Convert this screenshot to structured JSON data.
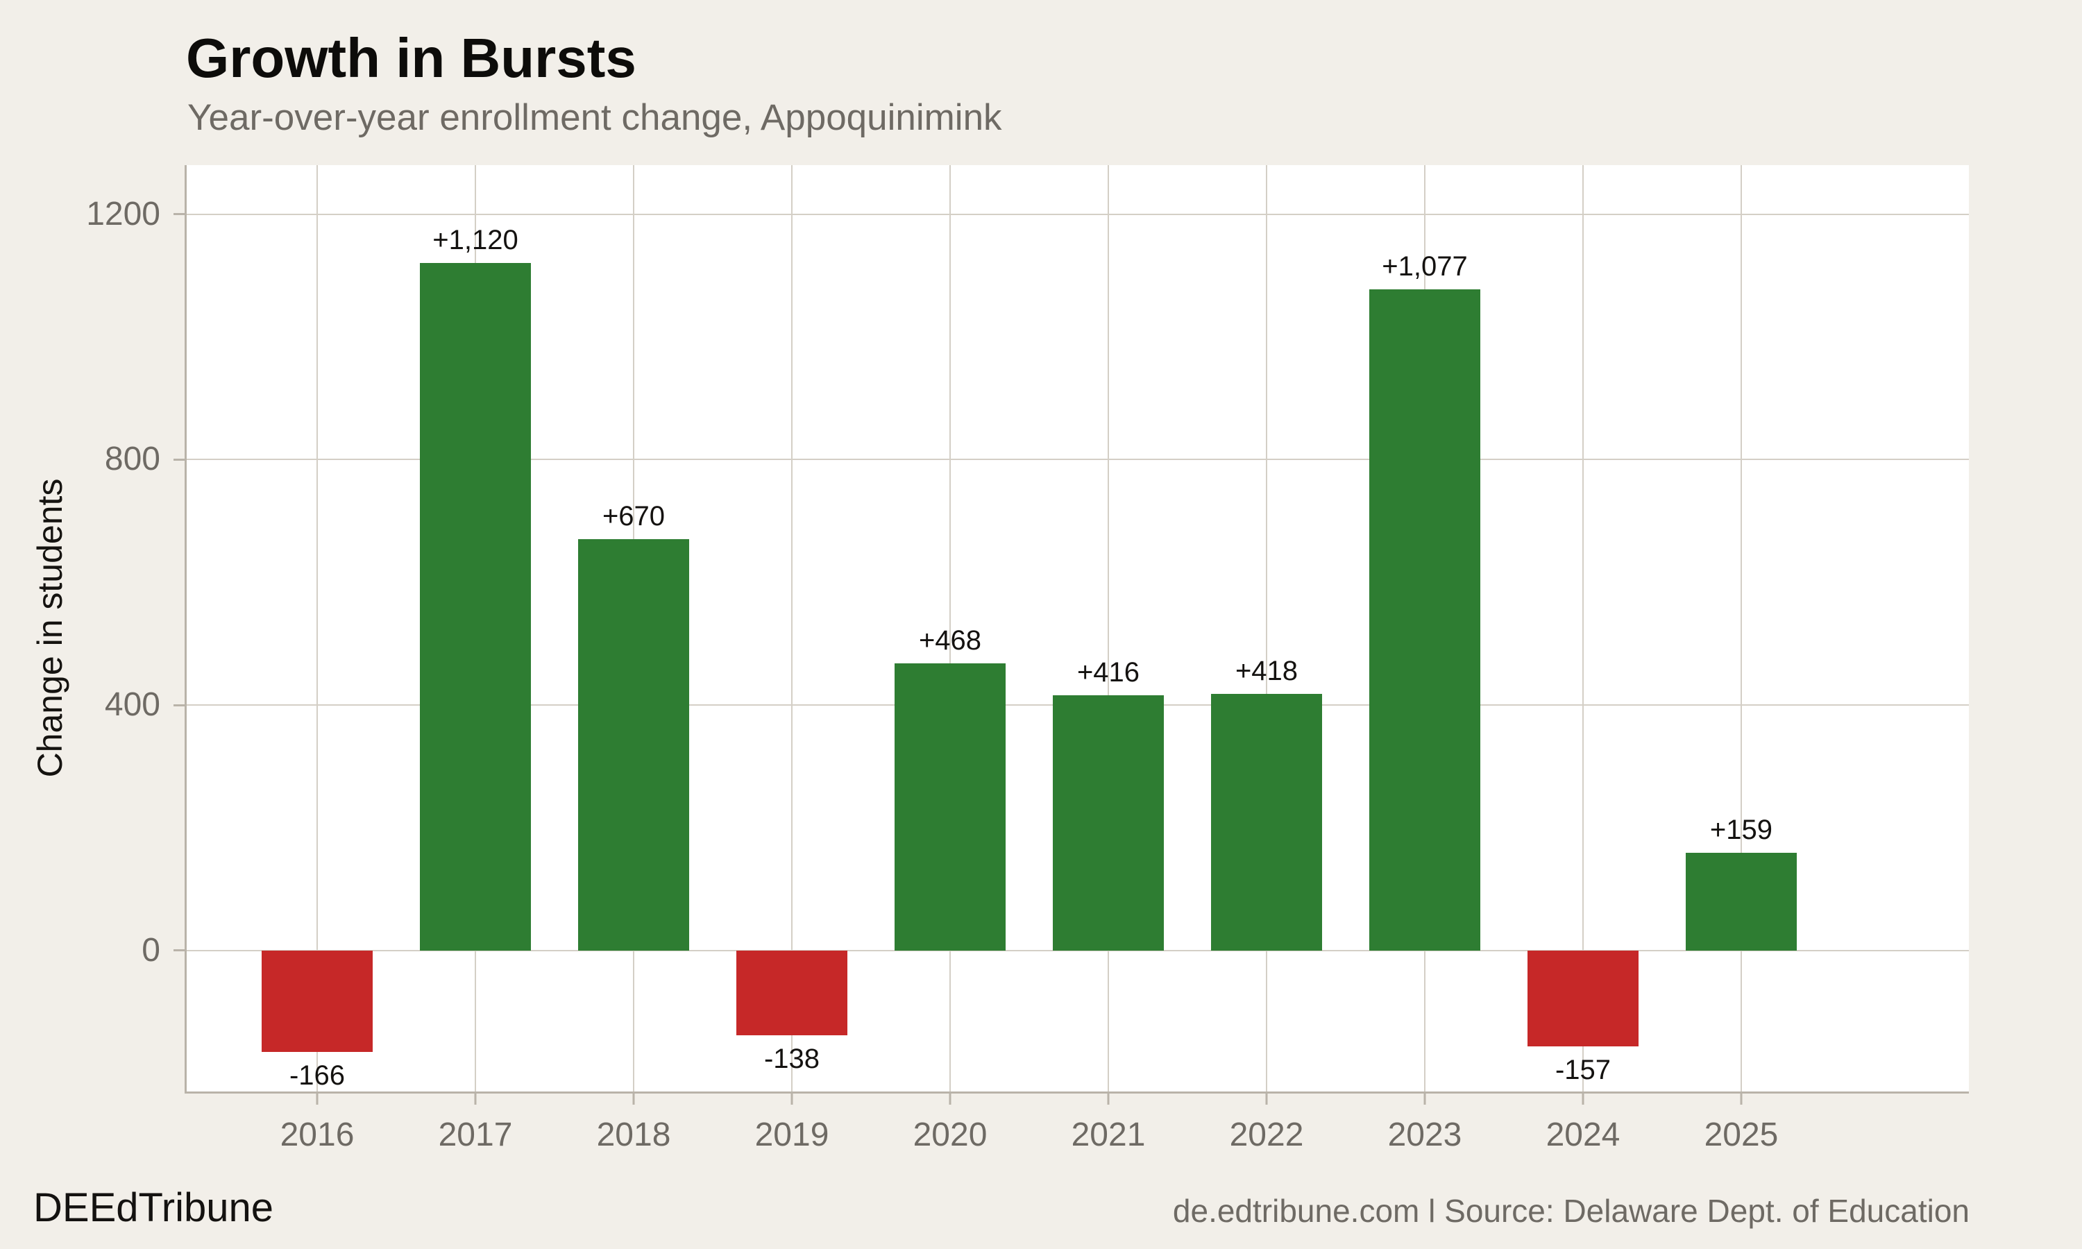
{
  "header": {
    "title": "Growth in Bursts",
    "subtitle": "Year-over-year enrollment change, Appoquinimink"
  },
  "footer": {
    "brand": "DEEdTribune",
    "source": "de.edtribune.com l Source: Delaware Dept. of Education"
  },
  "colors": {
    "background": "#f2efe9",
    "plot_background": "#ffffff",
    "gridline": "#d4cfc6",
    "axis_line": "#b9b3a9",
    "title_text": "#0d0c0a",
    "muted_text": "#6e6a64",
    "bar_label_text": "#141210",
    "positive": "#2e7d32",
    "negative": "#c62828"
  },
  "chart_data": {
    "type": "bar",
    "title": "Growth in Bursts",
    "subtitle": "Year-over-year enrollment change, Appoquinimink",
    "xlabel": "",
    "ylabel": "Change in students",
    "categories": [
      "2016",
      "2017",
      "2018",
      "2019",
      "2020",
      "2021",
      "2022",
      "2023",
      "2024",
      "2025"
    ],
    "values": [
      -166,
      1120,
      670,
      -138,
      468,
      416,
      418,
      1077,
      -157,
      159
    ],
    "value_labels": [
      "-166",
      "+1,120",
      "+670",
      "-138",
      "+468",
      "+416",
      "+418",
      "+1,077",
      "-157",
      "+159"
    ],
    "yticks": [
      0,
      400,
      800,
      1200
    ],
    "ytick_labels": [
      "0",
      "400",
      "800",
      "1200"
    ],
    "ylim": [
      -230,
      1280
    ],
    "grid": true,
    "legend": false,
    "positive_color": "#2e7d32",
    "negative_color": "#c62828"
  }
}
